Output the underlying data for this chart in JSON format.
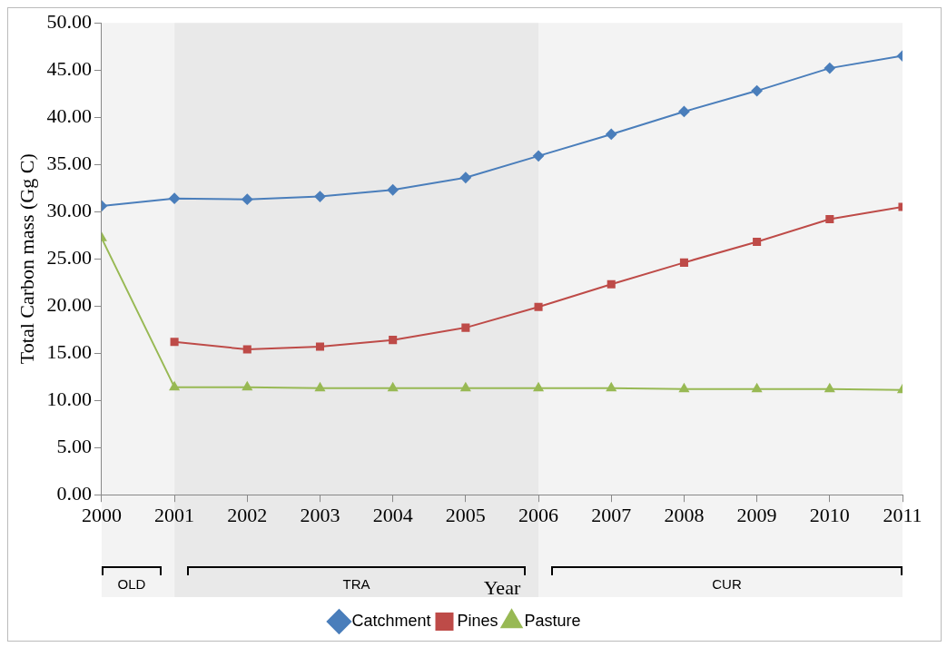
{
  "chart_data": {
    "type": "line",
    "xlabel": "Year",
    "ylabel": "Total Carbon mass (Gg C)",
    "x": [
      2000,
      2001,
      2002,
      2003,
      2004,
      2005,
      2006,
      2007,
      2008,
      2009,
      2010,
      2011
    ],
    "series": [
      {
        "name": "Catchment",
        "color": "#4a7ebb",
        "marker": "diamond",
        "values": [
          30.6,
          31.4,
          31.3,
          31.6,
          32.3,
          33.6,
          35.9,
          38.2,
          40.6,
          42.8,
          45.2,
          46.5
        ]
      },
      {
        "name": "Pines",
        "color": "#be4b48",
        "marker": "square",
        "values": [
          null,
          16.2,
          15.4,
          15.7,
          16.4,
          17.7,
          19.9,
          22.3,
          24.6,
          26.8,
          29.2,
          30.5
        ]
      },
      {
        "name": "Pasture",
        "color": "#98b954",
        "marker": "triangle",
        "values": [
          27.2,
          11.4,
          11.4,
          11.3,
          11.3,
          11.3,
          11.3,
          11.3,
          11.2,
          11.2,
          11.2,
          11.1
        ]
      }
    ],
    "xlim": [
      2000,
      2011
    ],
    "xticks": [
      2000,
      2001,
      2002,
      2003,
      2004,
      2005,
      2006,
      2007,
      2008,
      2009,
      2010,
      2011
    ],
    "ylim": [
      0,
      50
    ],
    "yticks": [
      {
        "value": 0,
        "label": "0.00"
      },
      {
        "value": 5,
        "label": "5.00"
      },
      {
        "value": 10,
        "label": "10.00"
      },
      {
        "value": 15,
        "label": "15.00"
      },
      {
        "value": 20,
        "label": "20.00"
      },
      {
        "value": 25,
        "label": "25.00"
      },
      {
        "value": 30,
        "label": "30.00"
      },
      {
        "value": 35,
        "label": "35.00"
      },
      {
        "value": 40,
        "label": "40.00"
      },
      {
        "value": 45,
        "label": "45.00"
      },
      {
        "value": 50,
        "label": "50.00"
      }
    ],
    "bands": [
      {
        "axis": "x",
        "from": 2000,
        "to": 2001,
        "label": "OLD",
        "color": "#f3f3f3"
      },
      {
        "axis": "x",
        "from": 2001,
        "to": 2006,
        "label": "TRA",
        "color": "#e9e9e9"
      },
      {
        "axis": "x",
        "from": 2006,
        "to": 2011,
        "label": "CUR",
        "color": "#f3f3f3"
      }
    ],
    "grid": false,
    "legend": "bottom",
    "line_style": "solid"
  }
}
